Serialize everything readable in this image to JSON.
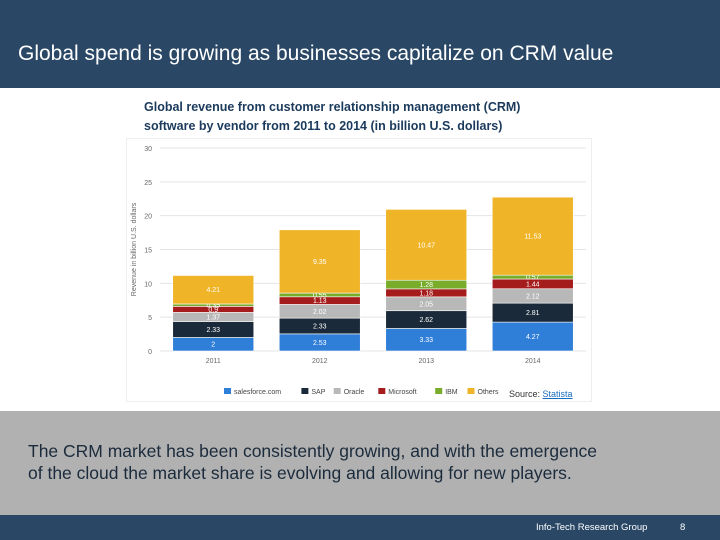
{
  "header": {
    "title": "Global spend is growing as businesses capitalize on CRM value"
  },
  "chart_data": {
    "type": "bar",
    "stacked": true,
    "title_lines": [
      "Global revenue from customer relationship management (CRM)",
      "software by vendor from 2011 to 2014 (in billion U.S. dollars)"
    ],
    "ylabel": "Revenue in billion U.S. dollars",
    "ylim": [
      0,
      30
    ],
    "yticks": [
      0,
      5,
      10,
      15,
      20,
      25,
      30
    ],
    "grid": true,
    "legend_position": "bottom",
    "categories": [
      "2011",
      "2012",
      "2013",
      "2014"
    ],
    "series": [
      {
        "name": "salesforce.com",
        "color": "#2f7ed8",
        "values": [
          2,
          2.53,
          3.33,
          4.27
        ]
      },
      {
        "name": "SAP",
        "color": "#1b2a3a",
        "values": [
          2.33,
          2.33,
          2.62,
          2.81
        ]
      },
      {
        "name": "Oracle",
        "color": "#b8b8b8",
        "values": [
          1.37,
          2.02,
          2.05,
          2.12
        ]
      },
      {
        "name": "Microsoft",
        "color": "#a51c1c",
        "values": [
          0.9,
          1.13,
          1.18,
          1.44
        ]
      },
      {
        "name": "IBM",
        "color": "#78ac2a",
        "values": [
          0.35,
          0.55,
          1.28,
          0.57
        ]
      },
      {
        "name": "Others",
        "color": "#f0b429",
        "values": [
          4.21,
          9.35,
          10.47,
          11.53
        ]
      }
    ]
  },
  "source": {
    "label": "Source:",
    "link": "Statista"
  },
  "body": {
    "lines": [
      "The CRM market has been consistently growing, and with the emergence",
      "of the cloud the market share is evolving and allowing for new players."
    ]
  },
  "footer": {
    "brand": "Info-Tech Research Group",
    "page": "8"
  }
}
